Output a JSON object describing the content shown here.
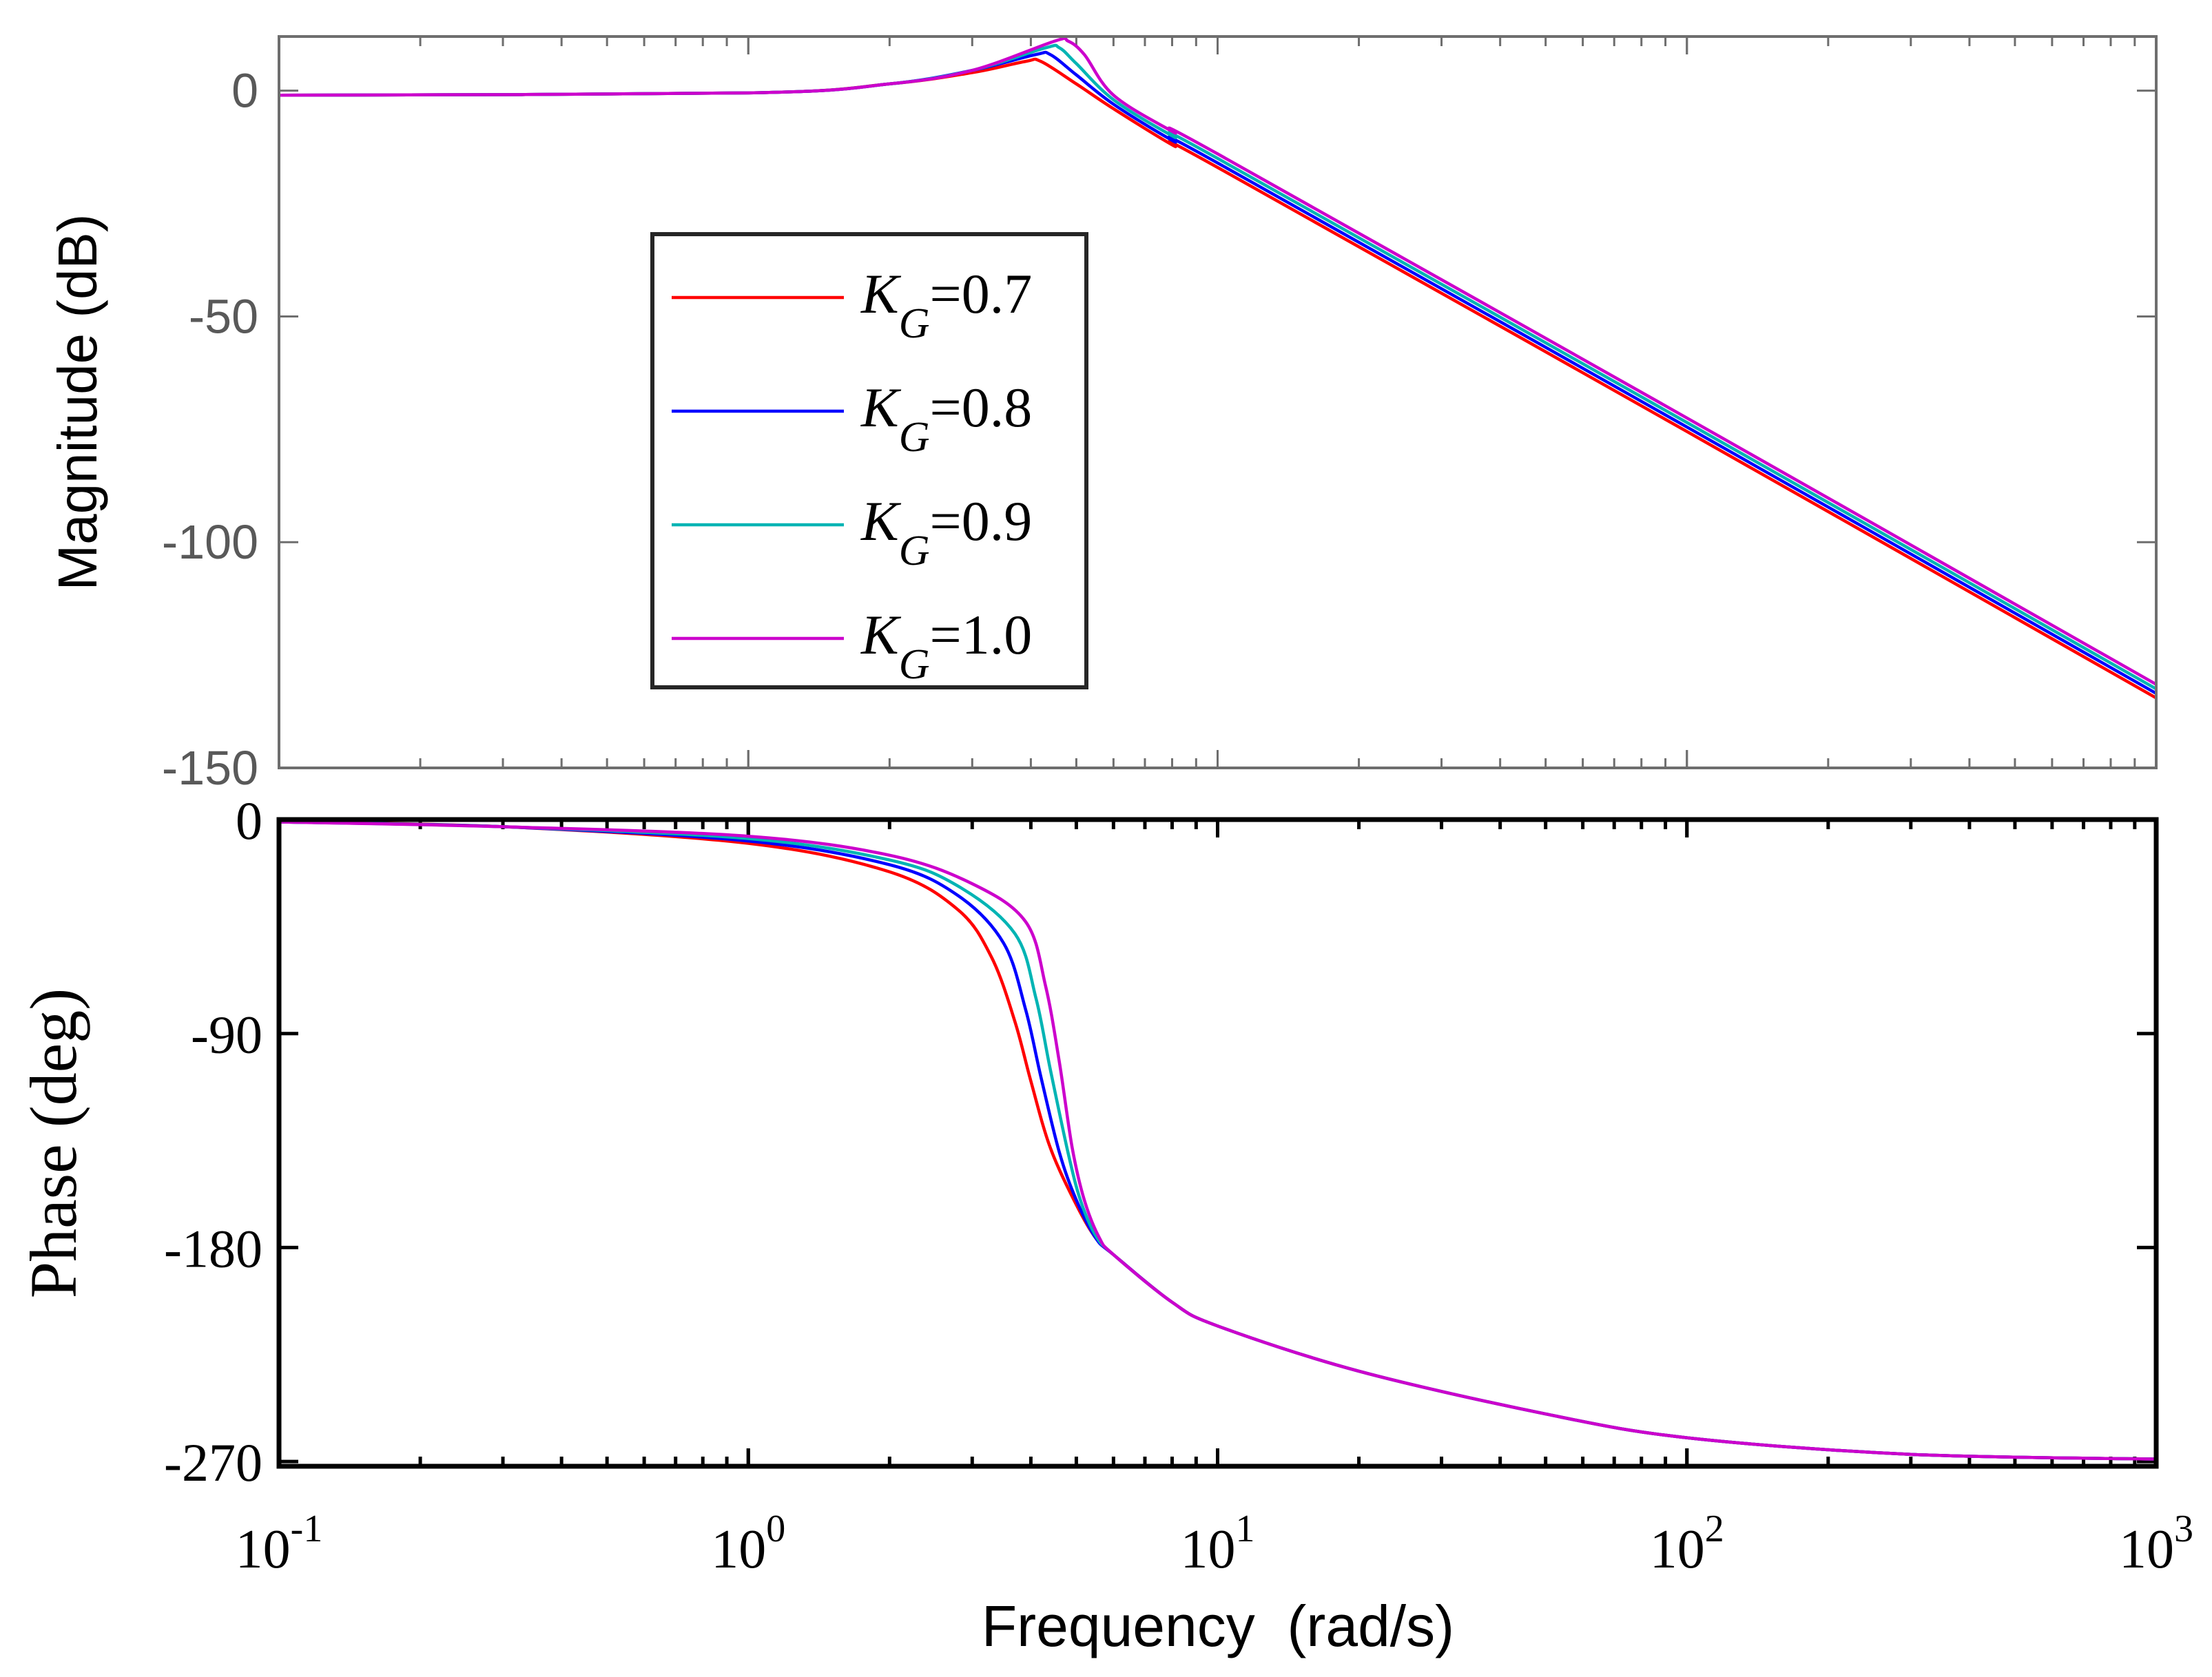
{
  "chart_data": [
    {
      "type": "line",
      "panel": "magnitude",
      "ylabel": "Magnitude (dB)",
      "xscale": "log",
      "xlim": [
        0.1,
        1000
      ],
      "ylim": [
        -150,
        12
      ],
      "yticks": [
        0,
        -50,
        -100,
        -150
      ],
      "ytick_labels": [
        "0",
        "-50",
        "-100",
        "-150"
      ],
      "grid": false,
      "legend": {
        "location": "center-left",
        "entries": [
          {
            "symbol": "K",
            "subscript": "G",
            "value": "=0.7"
          },
          {
            "symbol": "K",
            "subscript": "G",
            "value": "=0.8"
          },
          {
            "symbol": "K",
            "subscript": "G",
            "value": "=0.9"
          },
          {
            "symbol": "K",
            "subscript": "G",
            "value": "=1.0"
          }
        ]
      },
      "series": [
        {
          "name": "K_G=0.7",
          "color": "#ff0000",
          "x": [
            0.1,
            1,
            2,
            3,
            3.9,
            4.2,
            5,
            6,
            8,
            10,
            100,
            1000
          ],
          "values": [
            -1,
            -0.5,
            1.5,
            4,
            6.5,
            6.5,
            1.5,
            -4,
            -12,
            -17,
            -75.5,
            -134.5
          ]
        },
        {
          "name": "K_G=0.8",
          "color": "#0000ff",
          "x": [
            0.1,
            1,
            2,
            3,
            4.1,
            4.4,
            5,
            6,
            8,
            10,
            100,
            1000
          ],
          "values": [
            -1,
            -0.5,
            1.5,
            4.5,
            8,
            8,
            3.5,
            -3,
            -11,
            -16,
            -74.5,
            -133.5
          ]
        },
        {
          "name": "K_G=0.9",
          "color": "#00b4b4",
          "x": [
            0.1,
            1,
            2,
            3,
            4.3,
            4.6,
            5,
            6,
            8,
            10,
            100,
            1000
          ],
          "values": [
            -1,
            -0.5,
            1.5,
            4.5,
            9.5,
            9.5,
            6,
            -2,
            -10,
            -15,
            -73.5,
            -132.5
          ]
        },
        {
          "name": "K_G=1.0",
          "color": "#cc00cc",
          "x": [
            0.1,
            1,
            2,
            3,
            4.5,
            4.8,
            5.2,
            6,
            8,
            10,
            100,
            1000
          ],
          "values": [
            -1,
            -0.5,
            1.5,
            4.5,
            11,
            11,
            8,
            -1,
            -9,
            -14,
            -72.5,
            -131.5
          ]
        }
      ]
    },
    {
      "type": "line",
      "panel": "phase",
      "ylabel": "Phase (deg)",
      "xlabel": "Frequency  (rad/s)",
      "xscale": "log",
      "xlim": [
        0.1,
        1000
      ],
      "ylim": [
        -272,
        0
      ],
      "yticks": [
        0,
        -90,
        -180,
        -270
      ],
      "ytick_labels": [
        "0",
        "-90",
        "-180",
        "-270"
      ],
      "xticks": [
        0.1,
        1,
        10,
        100,
        1000
      ],
      "xtick_labels": [
        {
          "base": "10",
          "exp": "-1"
        },
        {
          "base": "10",
          "exp": "0"
        },
        {
          "base": "10",
          "exp": "1"
        },
        {
          "base": "10",
          "exp": "2"
        },
        {
          "base": "10",
          "exp": "3"
        }
      ],
      "grid": false,
      "series": [
        {
          "name": "K_G=0.7",
          "color": "#ff0000",
          "x": [
            0.1,
            0.3,
            1,
            2,
            2.8,
            3.3,
            3.7,
            4,
            4.4,
            5,
            5.5,
            6,
            8,
            10,
            20,
            50,
            100,
            300,
            1000
          ],
          "values": [
            -1,
            -3,
            -10,
            -22,
            -38,
            -58,
            -85,
            -110,
            -138,
            -162,
            -176,
            -183,
            -203,
            -213,
            -232,
            -250,
            -260,
            -267,
            -269
          ]
        },
        {
          "name": "K_G=0.8",
          "color": "#0000ff",
          "x": [
            0.1,
            0.3,
            1,
            2,
            2.8,
            3.5,
            3.9,
            4.2,
            4.6,
            5,
            5.5,
            6,
            8,
            10,
            20,
            50,
            100,
            300,
            1000
          ],
          "values": [
            -1,
            -3,
            -9,
            -19,
            -32,
            -52,
            -80,
            -108,
            -140,
            -160,
            -176,
            -183,
            -203,
            -213,
            -232,
            -250,
            -260,
            -267,
            -269
          ]
        },
        {
          "name": "K_G=0.9",
          "color": "#00b4b4",
          "x": [
            0.1,
            0.3,
            1,
            2,
            2.8,
            3.7,
            4.1,
            4.4,
            4.8,
            5.1,
            5.5,
            6,
            8,
            10,
            20,
            50,
            100,
            300,
            1000
          ],
          "values": [
            -1,
            -3,
            -8,
            -17,
            -28,
            -48,
            -75,
            -105,
            -140,
            -160,
            -175,
            -183,
            -203,
            -213,
            -232,
            -250,
            -260,
            -267,
            -269
          ]
        },
        {
          "name": "K_G=1.0",
          "color": "#cc00cc",
          "x": [
            0.1,
            0.3,
            1,
            2,
            3,
            3.9,
            4.3,
            4.6,
            4.9,
            5.2,
            5.6,
            6,
            8,
            10,
            20,
            50,
            100,
            300,
            1000
          ],
          "values": [
            -1,
            -3,
            -7,
            -15,
            -27,
            -43,
            -70,
            -102,
            -138,
            -160,
            -176,
            -183,
            -203,
            -213,
            -232,
            -250,
            -260,
            -267,
            -269
          ]
        }
      ]
    }
  ]
}
